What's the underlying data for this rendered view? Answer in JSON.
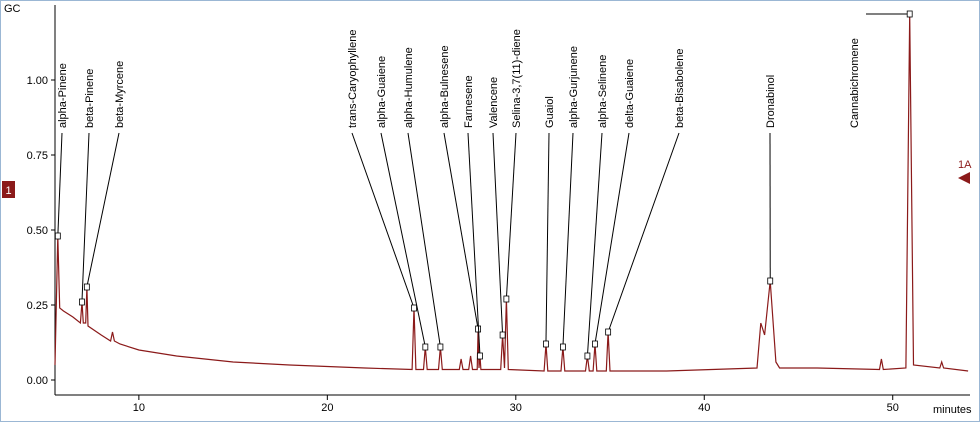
{
  "chart_data": {
    "type": "line",
    "y_label": "GC",
    "x_label": "minutes",
    "channel_label": "1",
    "trace_label": "1A",
    "xlim": [
      5.55,
      54.1
    ],
    "ylim": [
      -0.05,
      1.25
    ],
    "xticks": [
      10,
      20,
      30,
      40,
      50
    ],
    "yticks": [
      {
        "value": 0,
        "label": "0.00"
      },
      {
        "value": 0.25,
        "label": "0.25"
      },
      {
        "value": 0.5,
        "label": "0.50"
      },
      {
        "value": 0.75,
        "label": "0.75"
      },
      {
        "value": 1,
        "label": "1.00"
      }
    ],
    "x": [
      5.55,
      5.7,
      5.8,
      6.0,
      6.5,
      6.9,
      6.98,
      7.05,
      7.18,
      7.24,
      7.3,
      8.0,
      8.5,
      8.6,
      8.7,
      9,
      10,
      12,
      15,
      18,
      20,
      22,
      24.5,
      24.6,
      24.7,
      25.1,
      25.2,
      25.3,
      25.9,
      26.0,
      26.1,
      27.0,
      27.1,
      27.2,
      27.5,
      27.6,
      27.7,
      27.95,
      28.0,
      28.05,
      28.1,
      28.15,
      29.2,
      29.3,
      29.4,
      29.5,
      29.6,
      31.5,
      31.6,
      31.7,
      32.4,
      32.5,
      32.6,
      33.7,
      33.8,
      33.9,
      34.1,
      34.2,
      34.3,
      34.8,
      34.9,
      35.0,
      38,
      42.8,
      43.0,
      43.2,
      43.5,
      43.8,
      44,
      46,
      49.3,
      49.4,
      49.5,
      50.7,
      50.9,
      51.1,
      52.5,
      52.6,
      52.7,
      54
    ],
    "series": [
      {
        "color": "#8b1a1a",
        "values": [
          0.05,
          0.48,
          0.24,
          0.23,
          0.21,
          0.19,
          0.26,
          0.19,
          0.19,
          0.31,
          0.18,
          0.15,
          0.13,
          0.16,
          0.13,
          0.12,
          0.1,
          0.08,
          0.06,
          0.05,
          0.045,
          0.04,
          0.035,
          0.24,
          0.035,
          0.035,
          0.11,
          0.035,
          0.035,
          0.11,
          0.035,
          0.035,
          0.07,
          0.035,
          0.035,
          0.08,
          0.035,
          0.035,
          0.17,
          0.04,
          0.08,
          0.035,
          0.035,
          0.15,
          0.04,
          0.27,
          0.035,
          0.03,
          0.12,
          0.03,
          0.03,
          0.11,
          0.03,
          0.03,
          0.08,
          0.03,
          0.03,
          0.12,
          0.03,
          0.03,
          0.16,
          0.03,
          0.03,
          0.04,
          0.19,
          0.15,
          0.33,
          0.06,
          0.04,
          0.04,
          0.035,
          0.07,
          0.035,
          0.04,
          1.22,
          0.05,
          0.04,
          0.06,
          0.04,
          0.03
        ]
      }
    ],
    "annotations": [
      {
        "label": "alpha-Pinene",
        "x": 5.7,
        "y": 0.48
      },
      {
        "label": "beta-Pinene",
        "x": 6.98,
        "y": 0.26
      },
      {
        "label": "beta-Myrcene",
        "x": 7.24,
        "y": 0.31
      },
      {
        "label": "trans-Caryophyllene",
        "x": 24.6,
        "y": 0.24
      },
      {
        "label": "alpha-Guaiene",
        "x": 25.2,
        "y": 0.11
      },
      {
        "label": "alpha-Humulene",
        "x": 26.0,
        "y": 0.11
      },
      {
        "label": "alpha-Bulnesene",
        "x": 28.0,
        "y": 0.17
      },
      {
        "label": "Farnesene",
        "x": 28.1,
        "y": 0.08
      },
      {
        "label": "Valencene",
        "x": 29.3,
        "y": 0.15
      },
      {
        "label": "Selina-3,7(11)-diene",
        "x": 29.5,
        "y": 0.27
      },
      {
        "label": "Guaiol",
        "x": 31.6,
        "y": 0.12
      },
      {
        "label": "alpha-Gurjunene",
        "x": 32.5,
        "y": 0.11
      },
      {
        "label": "alpha-Selinene",
        "x": 33.8,
        "y": 0.08
      },
      {
        "label": "delta-Guaiene",
        "x": 34.2,
        "y": 0.12
      },
      {
        "label": "beta-Bisabolene",
        "x": 34.9,
        "y": 0.16
      },
      {
        "label": "Dronabinol",
        "x": 43.5,
        "y": 0.33
      },
      {
        "label": "Cannabichromene",
        "x": 50.9,
        "y": 1.22
      }
    ]
  }
}
